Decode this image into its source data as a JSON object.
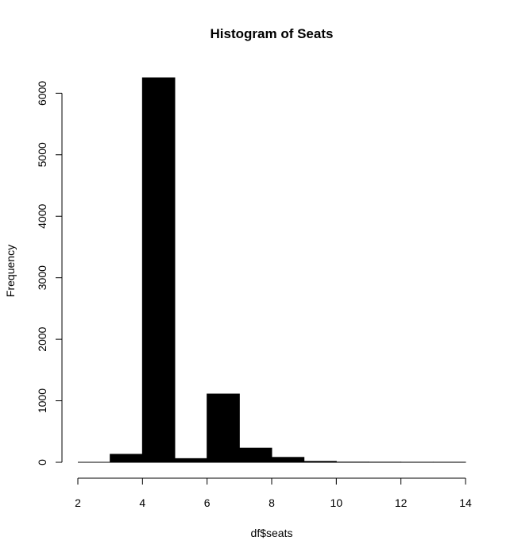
{
  "chart_data": {
    "type": "bar",
    "title": "Histogram of Seats",
    "xlabel": "df$seats",
    "ylabel": "Frequency",
    "bins": [
      {
        "x0": 2,
        "x1": 3,
        "count": 0
      },
      {
        "x0": 3,
        "x1": 4,
        "count": 130
      },
      {
        "x0": 4,
        "x1": 5,
        "count": 6250
      },
      {
        "x0": 5,
        "x1": 6,
        "count": 60
      },
      {
        "x0": 6,
        "x1": 7,
        "count": 1110
      },
      {
        "x0": 7,
        "x1": 8,
        "count": 230
      },
      {
        "x0": 8,
        "x1": 9,
        "count": 80
      },
      {
        "x0": 9,
        "x1": 10,
        "count": 15
      },
      {
        "x0": 10,
        "x1": 11,
        "count": 3
      },
      {
        "x0": 11,
        "x1": 12,
        "count": 2
      },
      {
        "x0": 12,
        "x1": 13,
        "count": 1
      },
      {
        "x0": 13,
        "x1": 14,
        "count": 1
      }
    ],
    "xlim": [
      2,
      14
    ],
    "ylim": [
      0,
      6250
    ],
    "xticks": [
      2,
      4,
      6,
      8,
      10,
      12,
      14
    ],
    "yticks": [
      0,
      1000,
      2000,
      3000,
      4000,
      5000,
      6000
    ],
    "bar_color": "#000000",
    "grid": false
  }
}
